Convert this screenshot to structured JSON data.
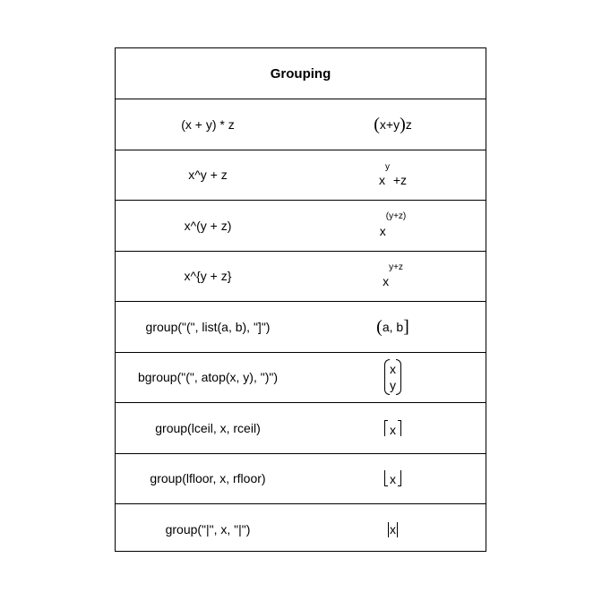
{
  "title": "Grouping",
  "rows": [
    {
      "code": "(x + y) * z",
      "math": {
        "open": "(",
        "inner": "x+y",
        "close": ")",
        "after": "z"
      }
    },
    {
      "code": "x^y + z",
      "math": {
        "base": "x",
        "sup": "y",
        "rest": " +z"
      }
    },
    {
      "code": "x^(y + z)",
      "math": {
        "base": "x",
        "sup": "(y+z)"
      }
    },
    {
      "code": "x^{y + z}",
      "math": {
        "base": "x",
        "sup": "y+z"
      }
    },
    {
      "code": "group(\"(\", list(a, b), \"]\")",
      "math": {
        "open": "(",
        "inner": "a, b",
        "close": "]"
      }
    },
    {
      "code": "bgroup(\"(\", atop(x, y), \")\")",
      "math": {
        "top": "x",
        "bottom": "y"
      }
    },
    {
      "code": "group(lceil, x, rceil)",
      "math": {
        "inner": "x"
      }
    },
    {
      "code": "group(lfloor, x, rfloor)",
      "math": {
        "inner": "x"
      }
    },
    {
      "code": "group(\"|\", x, \"|\")",
      "math": {
        "inner": "x"
      }
    }
  ]
}
